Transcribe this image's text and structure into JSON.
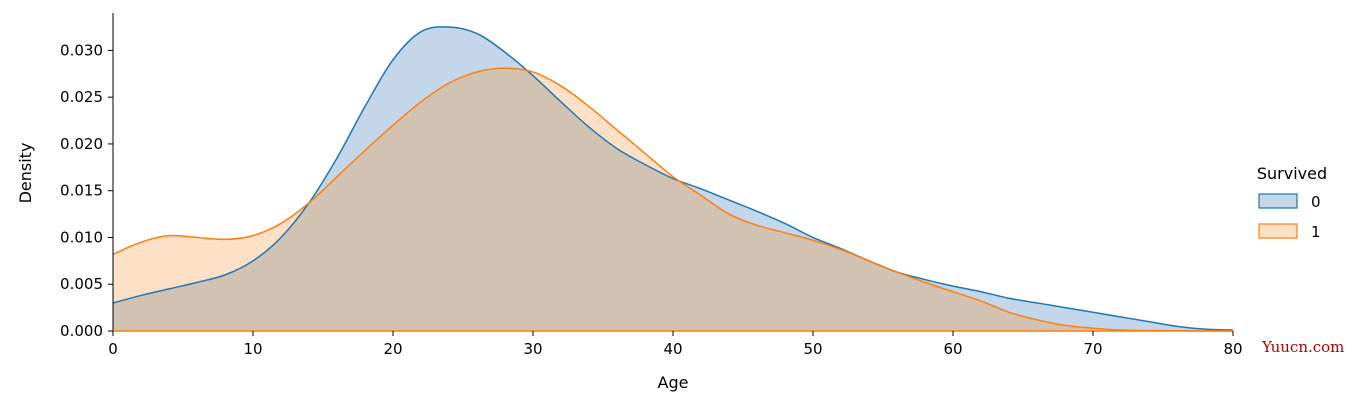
{
  "chart_data": {
    "type": "area",
    "title": "",
    "xlabel": "Age",
    "ylabel": "Density",
    "xlim": [
      0,
      80
    ],
    "ylim": [
      0,
      0.034
    ],
    "xticks": [
      "0",
      "10",
      "20",
      "30",
      "40",
      "50",
      "60",
      "70",
      "80"
    ],
    "yticks": [
      "0.000",
      "0.005",
      "0.010",
      "0.015",
      "0.020",
      "0.025",
      "0.030"
    ],
    "grid": false,
    "legend": {
      "title": "Survived",
      "placement": "right"
    },
    "x": [
      0,
      2,
      4,
      6,
      8,
      10,
      12,
      14,
      16,
      18,
      20,
      22,
      24,
      26,
      28,
      30,
      32,
      34,
      36,
      38,
      40,
      42,
      44,
      46,
      48,
      50,
      52,
      54,
      56,
      58,
      60,
      62,
      64,
      66,
      68,
      70,
      72,
      74,
      76,
      78,
      80
    ],
    "series": [
      {
        "name": "0",
        "color": "#1f77b4",
        "fill": "#c3d6ea",
        "values": [
          0.003,
          0.0038,
          0.0045,
          0.0052,
          0.006,
          0.0075,
          0.01,
          0.0137,
          0.0185,
          0.024,
          0.029,
          0.032,
          0.0325,
          0.0318,
          0.0298,
          0.0273,
          0.0245,
          0.0218,
          0.0195,
          0.0178,
          0.0163,
          0.0152,
          0.014,
          0.0128,
          0.0115,
          0.01,
          0.0088,
          0.0075,
          0.0063,
          0.0055,
          0.0048,
          0.0042,
          0.0035,
          0.003,
          0.0025,
          0.002,
          0.0015,
          0.001,
          0.0005,
          0.0002,
          0.0001
        ]
      },
      {
        "name": "1",
        "color": "#ff7f0e",
        "fill": "#fde1c7",
        "values": [
          0.0082,
          0.0095,
          0.0102,
          0.01,
          0.0098,
          0.0102,
          0.0115,
          0.0137,
          0.0165,
          0.0193,
          0.022,
          0.0245,
          0.0265,
          0.0277,
          0.0281,
          0.0277,
          0.0262,
          0.024,
          0.0215,
          0.019,
          0.0165,
          0.0145,
          0.0125,
          0.0113,
          0.0105,
          0.0097,
          0.0087,
          0.0075,
          0.0063,
          0.0052,
          0.0042,
          0.0032,
          0.002,
          0.0012,
          0.0006,
          0.0003,
          0.0001,
          5e-05,
          3e-05,
          1e-05,
          0.0
        ]
      }
    ],
    "overlap_color": "#d2c2b1"
  },
  "watermark": "Yuucn.com"
}
